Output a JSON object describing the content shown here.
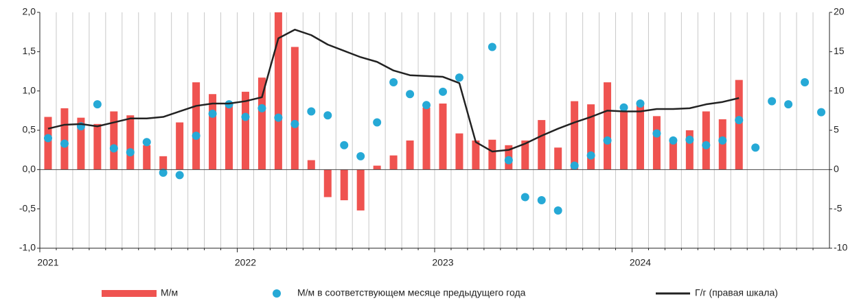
{
  "chart_data": {
    "type": "bar",
    "categories": [
      "2021",
      null,
      null,
      null,
      null,
      null,
      null,
      null,
      null,
      null,
      null,
      null,
      "2022",
      null,
      null,
      null,
      null,
      null,
      null,
      null,
      null,
      null,
      null,
      null,
      "2023",
      null,
      null,
      null,
      null,
      null,
      null,
      null,
      null,
      null,
      null,
      null,
      "2024",
      null,
      null,
      null,
      null,
      null,
      null,
      null,
      null,
      null,
      null,
      null
    ],
    "series": [
      {
        "name": "М/м",
        "type": "bar",
        "color": "#ef5350",
        "values": [
          0.67,
          0.78,
          0.66,
          0.58,
          0.74,
          0.69,
          0.31,
          0.17,
          0.6,
          1.11,
          0.96,
          0.82,
          0.99,
          1.17,
          2.0,
          1.56,
          0.12,
          -0.35,
          -0.39,
          -0.52,
          0.05,
          0.18,
          0.37,
          0.79,
          0.84,
          0.46,
          0.37,
          0.38,
          0.31,
          0.37,
          0.63,
          0.28,
          0.87,
          0.83,
          1.11,
          0.73,
          0.86,
          0.68,
          0.39,
          0.5,
          0.74,
          0.64,
          1.14,
          null,
          null,
          null,
          null,
          null
        ]
      },
      {
        "name": "М/м в соответствующем месяце предыдущего года",
        "type": "scatter",
        "color": "#26a9d6",
        "values": [
          0.4,
          0.33,
          0.55,
          0.83,
          0.27,
          0.22,
          0.35,
          -0.04,
          -0.07,
          0.43,
          0.71,
          0.83,
          0.67,
          0.78,
          0.66,
          0.58,
          0.74,
          0.69,
          0.31,
          0.17,
          0.6,
          1.11,
          0.96,
          0.82,
          0.99,
          1.17,
          null,
          1.56,
          0.12,
          -0.35,
          -0.39,
          -0.52,
          0.05,
          0.18,
          0.37,
          0.79,
          0.84,
          0.46,
          0.37,
          0.38,
          0.31,
          0.37,
          0.63,
          0.28,
          0.87,
          0.83,
          1.11,
          0.73
        ]
      },
      {
        "name": "Г/г (правая шкала)",
        "type": "line",
        "color": "#222222",
        "axis": "y2",
        "values": [
          5.2,
          5.7,
          5.8,
          5.5,
          6.0,
          6.5,
          6.5,
          6.7,
          7.4,
          8.1,
          8.4,
          8.4,
          8.7,
          9.2,
          16.7,
          17.8,
          17.1,
          15.9,
          15.1,
          14.3,
          13.7,
          12.6,
          12.0,
          11.9,
          11.8,
          11.0,
          3.5,
          2.3,
          2.5,
          3.3,
          4.3,
          5.2,
          6.0,
          6.7,
          7.5,
          7.4,
          7.4,
          7.7,
          7.7,
          7.8,
          8.3,
          8.6,
          9.1,
          null,
          null,
          null,
          null,
          null
        ]
      }
    ],
    "ylim": [
      -1.0,
      2.0
    ],
    "yticks": [
      {
        "value": -1.0,
        "label": "-1,0"
      },
      {
        "value": -0.5,
        "label": "-0,5"
      },
      {
        "value": 0,
        "label": "0,0"
      },
      {
        "value": 0.5,
        "label": "0,5"
      },
      {
        "value": 1.0,
        "label": "1,0"
      },
      {
        "value": 1.5,
        "label": "1,5"
      },
      {
        "value": 2.0,
        "label": "2,0"
      }
    ],
    "y2lim": [
      -10,
      20
    ],
    "y2ticks": [
      -10,
      -5,
      0,
      5,
      10,
      15,
      20
    ],
    "grid": true
  }
}
